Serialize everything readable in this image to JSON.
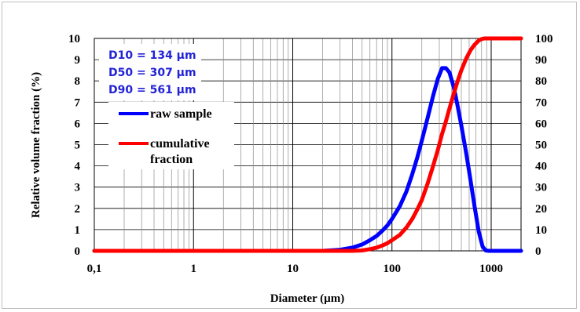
{
  "chart_data": {
    "type": "line",
    "xlabel": "Diameter (µm)",
    "ylabel": "Relative volume fraction (%)",
    "x_scale": "log",
    "xlim": [
      0.1,
      2000
    ],
    "ylim": [
      0,
      10
    ],
    "y2lim": [
      0,
      100
    ],
    "x_tick_labels": [
      "0,1",
      "1",
      "10",
      "100",
      "1000"
    ],
    "x_tick_values": [
      0.1,
      1,
      10,
      100,
      1000
    ],
    "y_tick_labels": [
      "0",
      "1",
      "2",
      "3",
      "4",
      "5",
      "6",
      "7",
      "8",
      "9",
      "10"
    ],
    "y2_tick_labels": [
      "0",
      "10",
      "20",
      "30",
      "40",
      "50",
      "60",
      "70",
      "80",
      "90",
      "100"
    ],
    "grid": true,
    "annotations": [
      "D10 = 134 µm",
      "D50 = 307 µm",
      "D90 = 561 µm"
    ],
    "series": [
      {
        "name": "raw sample",
        "color": "#0000ff",
        "axis": "left",
        "x": [
          0.1,
          20,
          30,
          40,
          50,
          60,
          70,
          80,
          90,
          100,
          120,
          140,
          160,
          180,
          200,
          230,
          260,
          290,
          320,
          350,
          380,
          420,
          460,
          500,
          560,
          620,
          680,
          750,
          820,
          880,
          950,
          1000,
          1500,
          2000
        ],
        "values": [
          0,
          0,
          0.05,
          0.15,
          0.3,
          0.5,
          0.7,
          0.95,
          1.2,
          1.5,
          2.1,
          2.8,
          3.6,
          4.4,
          5.2,
          6.3,
          7.3,
          8.1,
          8.6,
          8.6,
          8.4,
          7.7,
          6.8,
          5.9,
          4.6,
          3.3,
          2.1,
          0.9,
          0.2,
          0.02,
          0,
          0,
          0,
          0
        ]
      },
      {
        "name": "cumulative\nfraction",
        "color": "#ff0000",
        "axis": "right",
        "x": [
          0.1,
          40,
          50,
          60,
          70,
          80,
          90,
          100,
          120,
          140,
          160,
          180,
          200,
          230,
          260,
          290,
          320,
          350,
          380,
          420,
          460,
          500,
          560,
          620,
          680,
          750,
          800,
          850,
          1000,
          1500,
          2000
        ],
        "values": [
          0,
          0,
          0.2,
          0.8,
          1.5,
          2.5,
          3.6,
          5,
          7.5,
          11,
          15,
          19.5,
          24,
          32,
          40,
          47.5,
          55,
          61,
          67,
          74,
          80,
          85,
          90.5,
          94.5,
          97,
          99,
          99.7,
          100,
          100,
          100,
          100
        ]
      }
    ]
  },
  "legend": {
    "items": [
      "raw sample",
      "cumulative",
      "fraction"
    ]
  }
}
